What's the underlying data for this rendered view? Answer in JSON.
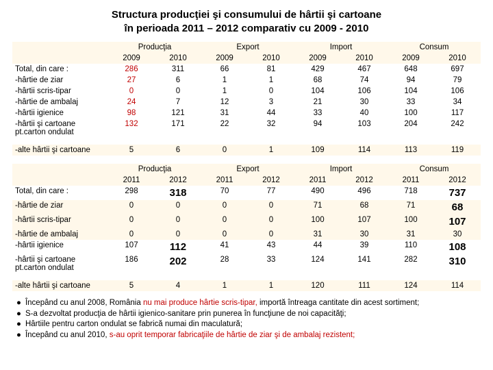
{
  "title_line1": "Structura producţiei şi consumului de hârtii şi cartoane",
  "title_line2": "în perioada 2011 – 2012 comparativ cu 2009 - 2010",
  "sections": [
    "Producţia",
    "Export",
    "Import",
    "Consum"
  ],
  "years_a": [
    "2009",
    "2010",
    "2009",
    "2010",
    "2009",
    "2010",
    "2009",
    "2010"
  ],
  "years_b": [
    "2011",
    "2012",
    "2011",
    "2012",
    "2011",
    "2012",
    "2011",
    "2012"
  ],
  "rows_a_labels": [
    "Total, din care :",
    "-hârtie de ziar",
    "-hârtii scris-tipar",
    "-hârtie de ambalaj",
    "-hârtii igienice",
    "-hârtii şi cartoane pt.carton ondulat",
    "-alte hârtii şi cartoane"
  ],
  "rows_a": [
    [
      "286",
      "311",
      "66",
      "81",
      "429",
      "467",
      "648",
      "697"
    ],
    [
      "27",
      "6",
      "1",
      "1",
      "68",
      "74",
      "94",
      "79"
    ],
    [
      "0",
      "0",
      "1",
      "0",
      "104",
      "106",
      "104",
      "106"
    ],
    [
      "24",
      "7",
      "12",
      "3",
      "21",
      "30",
      "33",
      "34"
    ],
    [
      "98",
      "121",
      "31",
      "44",
      "33",
      "40",
      "100",
      "117"
    ],
    [
      "132",
      "171",
      "22",
      "32",
      "94",
      "103",
      "204",
      "242"
    ],
    [
      "5",
      "6",
      "0",
      "1",
      "109",
      "114",
      "113",
      "119"
    ]
  ],
  "rows_a_red_cols": [
    0
  ],
  "rows_b_labels": [
    "Total, din care :",
    "-hârtie de ziar",
    "-hârtii scris-tipar",
    "-hârtie de ambalaj",
    "-hârtii igienice",
    "-hârtii şi cartoane pt.carton ondulat",
    "-alte hârtii şi cartoane"
  ],
  "rows_b": [
    [
      "298",
      "318",
      "70",
      "77",
      "490",
      "496",
      "718",
      "737"
    ],
    [
      "0",
      "0",
      "0",
      "0",
      "71",
      "68",
      "71",
      "68"
    ],
    [
      "0",
      "0",
      "0",
      "0",
      "100",
      "107",
      "100",
      "107"
    ],
    [
      "0",
      "0",
      "0",
      "0",
      "31",
      "30",
      "31",
      "30"
    ],
    [
      "107",
      "112",
      "41",
      "43",
      "44",
      "39",
      "110",
      "108"
    ],
    [
      "186",
      "202",
      "28",
      "33",
      "124",
      "141",
      "282",
      "310"
    ],
    [
      "5",
      "4",
      "1",
      "1",
      "120",
      "111",
      "124",
      "114"
    ]
  ],
  "rows_b_big_cells": [
    [
      0,
      1
    ],
    [
      0,
      7
    ],
    [
      1,
      7
    ],
    [
      2,
      7
    ],
    [
      4,
      1
    ],
    [
      4,
      7
    ],
    [
      5,
      1
    ],
    [
      5,
      7
    ]
  ],
  "ylw_rows_b": [
    1,
    2,
    3
  ],
  "bullets": [
    {
      "pre": "Începând cu anul 2008, România ",
      "red": "nu mai produce hârtie scris-tipar,",
      "post": "  importă întreaga cantitate din acest sortiment;"
    },
    {
      "pre": "S-a dezvoltat producţia de hârtii igienico-sanitare prin punerea în funcţiune de noi capacităţi;",
      "red": "",
      "post": ""
    },
    {
      "pre": "Hârtiile pentru carton ondulat se fabrică numai din maculatură;",
      "red": "",
      "post": ""
    },
    {
      "pre": "Începând cu anul 2010, ",
      "red": "s-au oprit temporar fabricaţiile de hârtie de ziar şi de ambalaj rezistent;",
      "post": ""
    }
  ]
}
